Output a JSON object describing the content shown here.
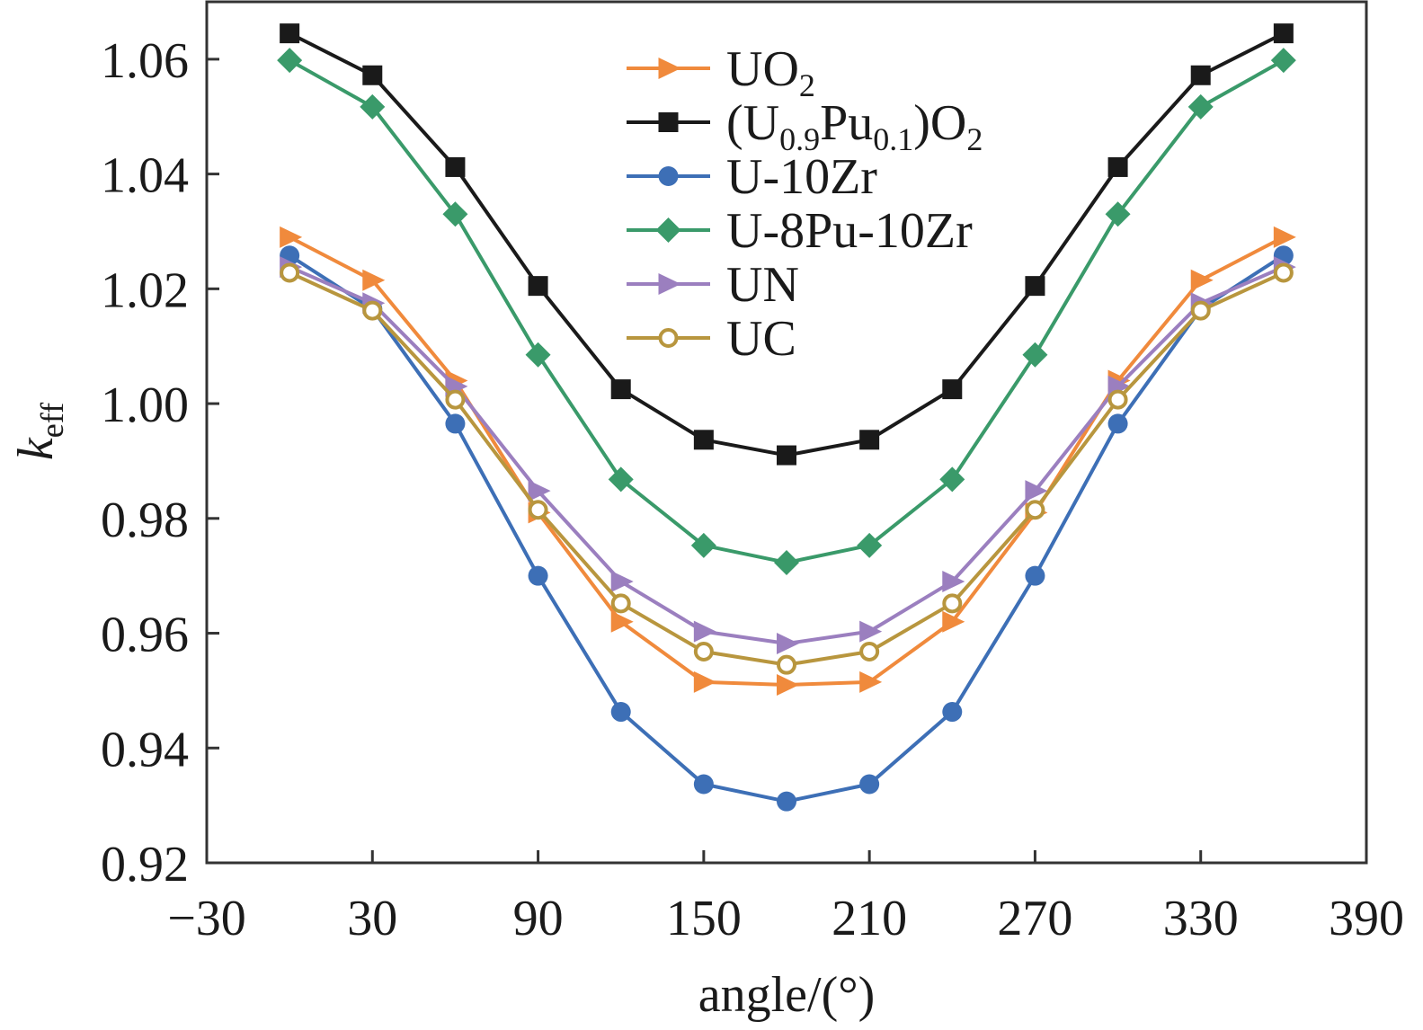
{
  "chart_data": {
    "type": "line",
    "xlabel": "angle/(°)",
    "ylabel": "k",
    "ylabel_sub": "eff",
    "xlim": [
      -30,
      390
    ],
    "ylim": [
      0.92,
      1.07
    ],
    "xticks": [
      -30,
      30,
      90,
      150,
      210,
      270,
      330,
      390
    ],
    "xtick_labels": [
      "−30",
      "30",
      "90",
      "150",
      "210",
      "270",
      "330",
      "390"
    ],
    "yticks": [
      0.92,
      0.94,
      0.96,
      0.98,
      1.0,
      1.02,
      1.04,
      1.06
    ],
    "ytick_labels": [
      "0.92",
      "0.94",
      "0.96",
      "0.98",
      "1.00",
      "1.02",
      "1.04",
      "1.06"
    ],
    "legend_position": "top-center",
    "grid": false,
    "x": [
      0,
      30,
      60,
      90,
      120,
      150,
      180,
      210,
      240,
      270,
      300,
      330,
      360
    ],
    "series": [
      {
        "name": "UO2",
        "legend_parts": [
          [
            "UO",
            ""
          ],
          [
            "2",
            "sub"
          ]
        ],
        "color": "#f08a3c",
        "marker": "triangle-right",
        "values": [
          1.029,
          1.0215,
          1.004,
          0.981,
          0.962,
          0.9515,
          0.951,
          0.9515,
          0.962,
          0.981,
          1.004,
          1.0215,
          1.029
        ]
      },
      {
        "name": "(U0.9Pu0.1)O2",
        "legend_parts": [
          [
            "(U",
            ""
          ],
          [
            "0.9",
            "sub"
          ],
          [
            "Pu",
            ""
          ],
          [
            "0.1",
            "sub"
          ],
          [
            ")O",
            ""
          ],
          [
            "2",
            "sub"
          ]
        ],
        "color": "#1a1a1a",
        "marker": "square",
        "values": [
          1.0645,
          1.0572,
          1.0412,
          1.0205,
          1.0025,
          0.9937,
          0.991,
          0.9937,
          1.0025,
          1.0205,
          1.0412,
          1.0572,
          1.0645
        ]
      },
      {
        "name": "U-10Zr",
        "legend_parts": [
          [
            "U-10Zr",
            ""
          ]
        ],
        "color": "#3d6fb6",
        "marker": "circle",
        "values": [
          1.0258,
          1.0165,
          0.9965,
          0.97,
          0.9463,
          0.9337,
          0.9307,
          0.9337,
          0.9463,
          0.97,
          0.9965,
          1.0165,
          1.0258
        ]
      },
      {
        "name": "U-8Pu-10Zr",
        "legend_parts": [
          [
            "U-8Pu-10Zr",
            ""
          ]
        ],
        "color": "#3a9a6a",
        "marker": "diamond",
        "values": [
          1.0598,
          1.0517,
          1.033,
          1.0085,
          0.9868,
          0.9753,
          0.9723,
          0.9753,
          0.9868,
          1.0085,
          1.033,
          1.0517,
          1.0598
        ]
      },
      {
        "name": "UN",
        "legend_parts": [
          [
            "UN",
            ""
          ]
        ],
        "color": "#9b7fbf",
        "marker": "triangle-right",
        "values": [
          1.0238,
          1.0175,
          1.003,
          0.9848,
          0.969,
          0.9603,
          0.9582,
          0.9603,
          0.969,
          0.9848,
          1.003,
          1.0175,
          1.0238
        ]
      },
      {
        "name": "UC",
        "legend_parts": [
          [
            "UC",
            ""
          ]
        ],
        "color": "#b8963e",
        "marker": "circle-open",
        "values": [
          1.0228,
          1.0162,
          1.0007,
          0.9815,
          0.9652,
          0.9568,
          0.9545,
          0.9568,
          0.9652,
          0.9815,
          1.0007,
          1.0162,
          1.0228
        ]
      }
    ]
  }
}
